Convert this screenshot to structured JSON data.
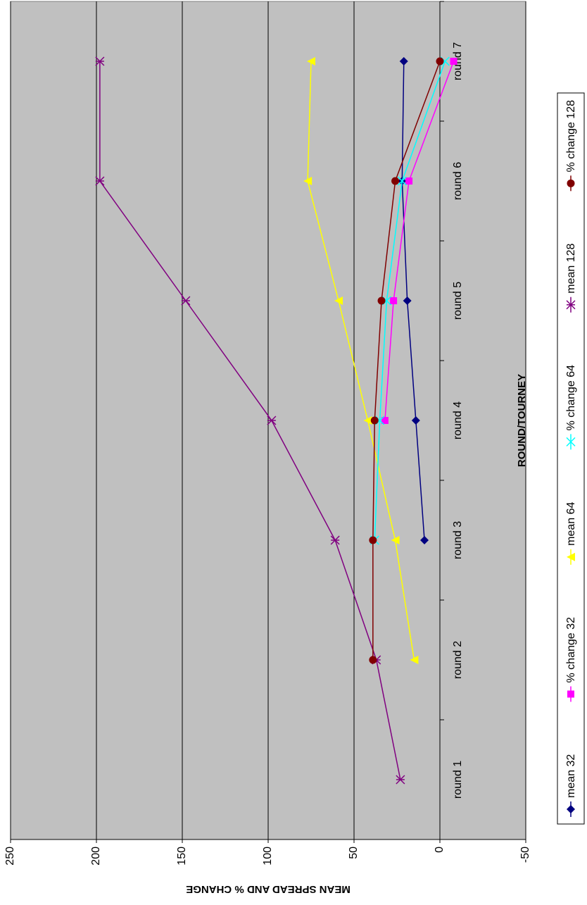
{
  "chart_data": {
    "type": "line",
    "x_label": "ROUND/TOURNEY",
    "y_label": "MEAN SPREAD AND % CHANGE",
    "categories": [
      "round 1",
      "round 2",
      "round 3",
      "round 4",
      "round 5",
      "round 6",
      "round 7"
    ],
    "ylim": [
      -50,
      250
    ],
    "yticks": [
      -50,
      0,
      50,
      100,
      150,
      200,
      250
    ],
    "grid": true,
    "legend": "bottom",
    "series": [
      {
        "name": "mean 32",
        "color": "#000080",
        "marker": "diamond",
        "values": [
          null,
          null,
          9,
          14,
          19,
          22,
          21
        ]
      },
      {
        "name": "% change 32",
        "color": "#ff00ff",
        "marker": "square",
        "values": [
          null,
          null,
          null,
          32,
          27,
          18,
          -8
        ]
      },
      {
        "name": "mean 64",
        "color": "#ffff00",
        "marker": "triangle",
        "values": [
          null,
          15,
          26,
          42,
          59,
          77,
          75
        ]
      },
      {
        "name": "% change 64",
        "color": "#00ffff",
        "marker": "x",
        "values": [
          null,
          null,
          38,
          35,
          31,
          22,
          -3
        ]
      },
      {
        "name": "mean 128",
        "color": "#800080",
        "marker": "asterisk",
        "values": [
          23,
          37,
          61,
          98,
          148,
          198,
          198
        ]
      },
      {
        "name": "% change 128",
        "color": "#800000",
        "marker": "circle",
        "values": [
          null,
          39,
          39,
          38,
          34,
          26,
          0
        ]
      }
    ]
  }
}
